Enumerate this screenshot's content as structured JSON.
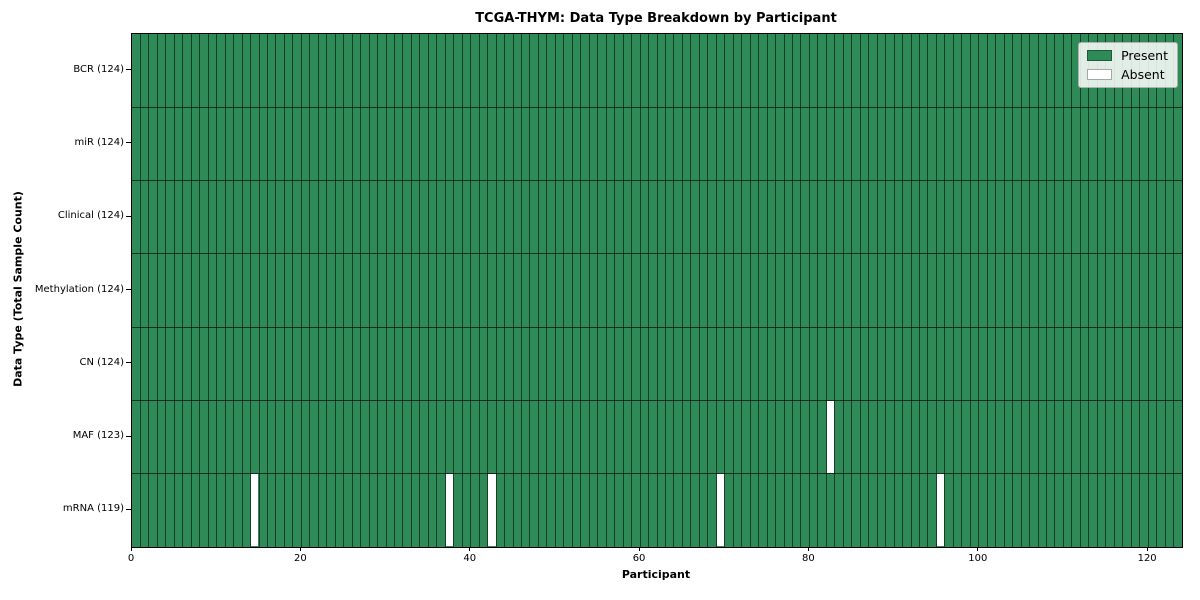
{
  "title": "TCGA-THYM: Data Type Breakdown by Participant",
  "x_axis": {
    "label": "Participant"
  },
  "y_axis": {
    "label": "Data Type (Total Sample Count)"
  },
  "legend": {
    "items": [
      {
        "label": "Present",
        "color": "#2e8b57"
      },
      {
        "label": "Absent",
        "color": "#ffffff"
      }
    ],
    "position": "upper right"
  },
  "colors": {
    "present": "#2e8b57",
    "absent": "#ffffff"
  },
  "chart_data": {
    "type": "heatmap",
    "title": "TCGA-THYM: Data Type Breakdown by Participant",
    "xlabel": "Participant",
    "ylabel": "Data Type (Total Sample Count)",
    "x_ticks": [
      0,
      20,
      40,
      60,
      80,
      100,
      120
    ],
    "x_range": [
      0,
      124
    ],
    "n_participants": 124,
    "grid": true,
    "legend_position": "upper right",
    "legend": [
      {
        "label": "Present",
        "color": "#2e8b57"
      },
      {
        "label": "Absent",
        "color": "#ffffff"
      }
    ],
    "rows": [
      {
        "label": "BCR (124)",
        "data_type": "BCR",
        "present_count": 124,
        "absent_participants": []
      },
      {
        "label": "miR (124)",
        "data_type": "miR",
        "present_count": 124,
        "absent_participants": []
      },
      {
        "label": "Clinical (124)",
        "data_type": "Clinical",
        "present_count": 124,
        "absent_participants": []
      },
      {
        "label": "Methylation (124)",
        "data_type": "Methylation",
        "present_count": 124,
        "absent_participants": []
      },
      {
        "label": "CN (124)",
        "data_type": "CN",
        "present_count": 124,
        "absent_participants": []
      },
      {
        "label": "MAF (123)",
        "data_type": "MAF",
        "present_count": 123,
        "absent_participants": [
          82
        ]
      },
      {
        "label": "mRNA (119)",
        "data_type": "mRNA",
        "present_count": 119,
        "absent_participants": [
          14,
          37,
          42,
          69,
          95
        ]
      }
    ]
  }
}
